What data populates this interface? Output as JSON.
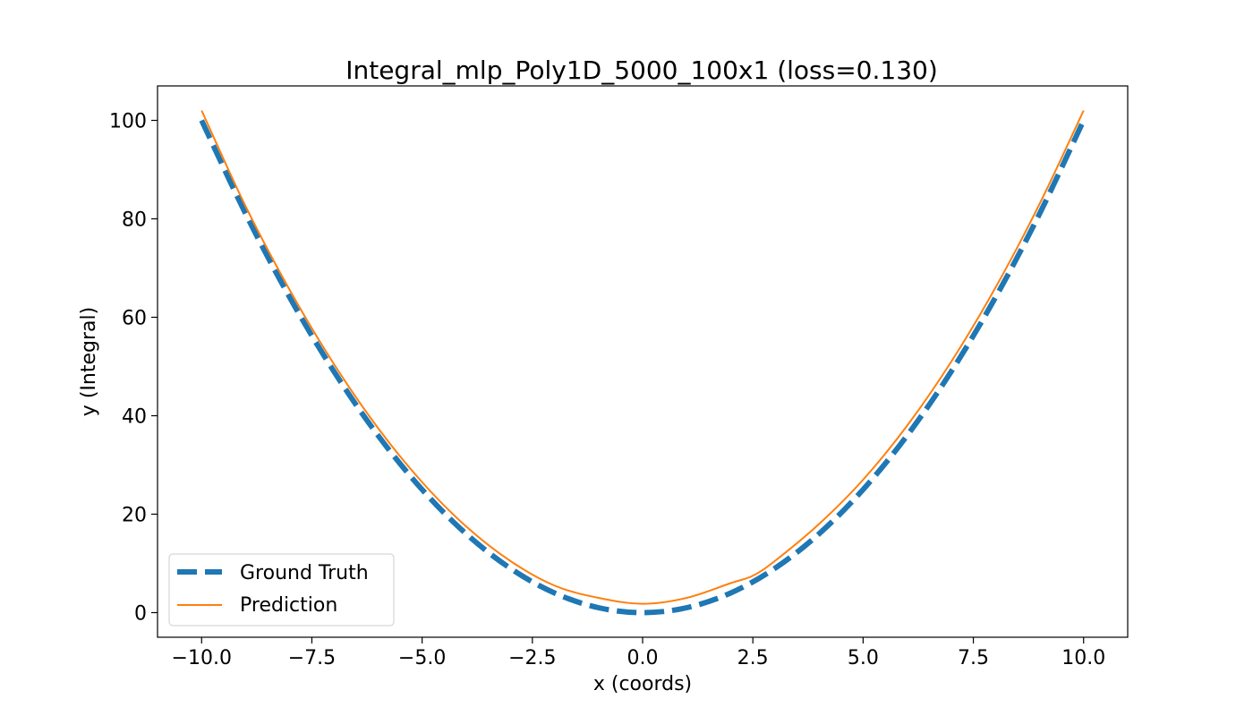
{
  "chart_data": {
    "type": "line",
    "title": "Integral_mlp_Poly1D_5000_100x1 (loss=0.130)",
    "xlabel": "x (coords)",
    "ylabel": "y (Integral)",
    "xlim": [
      -11.0,
      11.0
    ],
    "ylim": [
      -5.0,
      107.0
    ],
    "xticks": [
      -10.0,
      -7.5,
      -5.0,
      -2.5,
      0.0,
      2.5,
      5.0,
      7.5,
      10.0
    ],
    "xtick_labels": [
      "−10.0",
      "−7.5",
      "−5.0",
      "−2.5",
      "0.0",
      "2.5",
      "5.0",
      "7.5",
      "10.0"
    ],
    "yticks": [
      0,
      20,
      40,
      60,
      80,
      100
    ],
    "ytick_labels": [
      "0",
      "20",
      "40",
      "60",
      "80",
      "100"
    ],
    "grid": false,
    "legend_position": "lower-left",
    "series": [
      {
        "name": "Ground Truth",
        "color": "#1f77b4",
        "style": "dashed",
        "x": [
          -10,
          -9,
          -8,
          -7,
          -6,
          -5,
          -4,
          -3,
          -2,
          -1,
          0,
          1,
          2,
          3,
          4,
          5,
          6,
          7,
          8,
          9,
          10
        ],
        "y": [
          100,
          81,
          64,
          49,
          36,
          25,
          16,
          9,
          4,
          1,
          0,
          1,
          4,
          9,
          16,
          25,
          36,
          49,
          64,
          81,
          100
        ]
      },
      {
        "name": "Prediction",
        "color": "#ff7f0e",
        "style": "solid",
        "x": [
          -10,
          -9,
          -8,
          -7,
          -6,
          -5,
          -4,
          -3,
          -2,
          -1,
          0,
          1,
          2,
          2.5,
          3,
          4,
          5,
          6,
          7,
          8,
          9,
          10
        ],
        "y": [
          102,
          82.5,
          65.5,
          50.5,
          37.5,
          26.5,
          17.5,
          10.5,
          5.5,
          3.0,
          1.8,
          3.0,
          6.0,
          7.5,
          10.5,
          18.0,
          27.0,
          38.0,
          51.0,
          66.0,
          83.0,
          102
        ]
      }
    ]
  }
}
